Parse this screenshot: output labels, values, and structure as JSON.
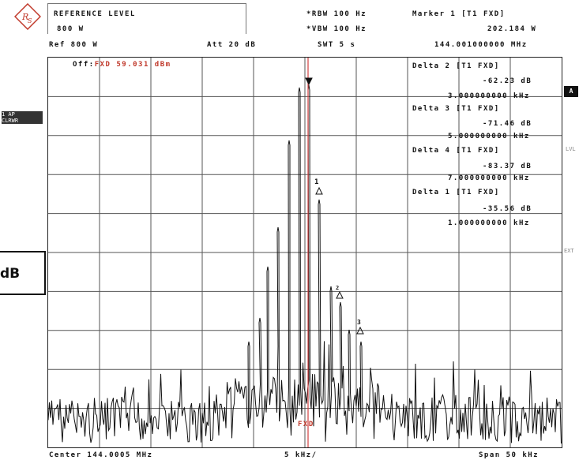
{
  "header": {
    "ref_level_title": "REFERENCE LEVEL",
    "ref_level_value": "800 W",
    "rbw": "*RBW 100 Hz",
    "vbw": "*VBW 100 Hz",
    "swt": "SWT 5 s",
    "marker_title": "Marker 1 [T1 FXD]",
    "marker_value": "202.184 W",
    "marker_freq": "144.001000000 MHz",
    "ref": "Ref  800 W",
    "att": "Att  20 dB"
  },
  "offset_label_prefix": "Off:",
  "offset_label_value": "FXD 59.031 dBm",
  "deltas": [
    {
      "title": "Delta 2 [T1 FXD]",
      "value": "-62.23 dB",
      "freq": "3.000000000 kHz"
    },
    {
      "title": "Delta 3 [T1 FXD]",
      "value": "-71.46 dB",
      "freq": "5.000000000 kHz"
    },
    {
      "title": "Delta 4 [T1 FXD]",
      "value": "-83.37 dB",
      "freq": "7.000000000 kHz"
    },
    {
      "title": "Delta 1 [T1 FXD]",
      "value": "-35.56 dB",
      "freq": "1.000000000 kHz"
    }
  ],
  "side": {
    "clrwr_top": "1 AP",
    "clrwr_bottom": "CLRWR",
    "a_badge": "A",
    "lvl": "LVL",
    "ext": "EXT",
    "db_box": "dB"
  },
  "markers": {
    "m1": "1",
    "m2": "2",
    "m3": "3"
  },
  "fxd_label": "FXD",
  "footer": {
    "center": "Center 144.0005 MHz",
    "div": "5 kHz/",
    "span": "Span 50 kHz"
  },
  "colors": {
    "trace": "#111111",
    "marker_line": "#d04040",
    "grid": "#555555"
  }
}
